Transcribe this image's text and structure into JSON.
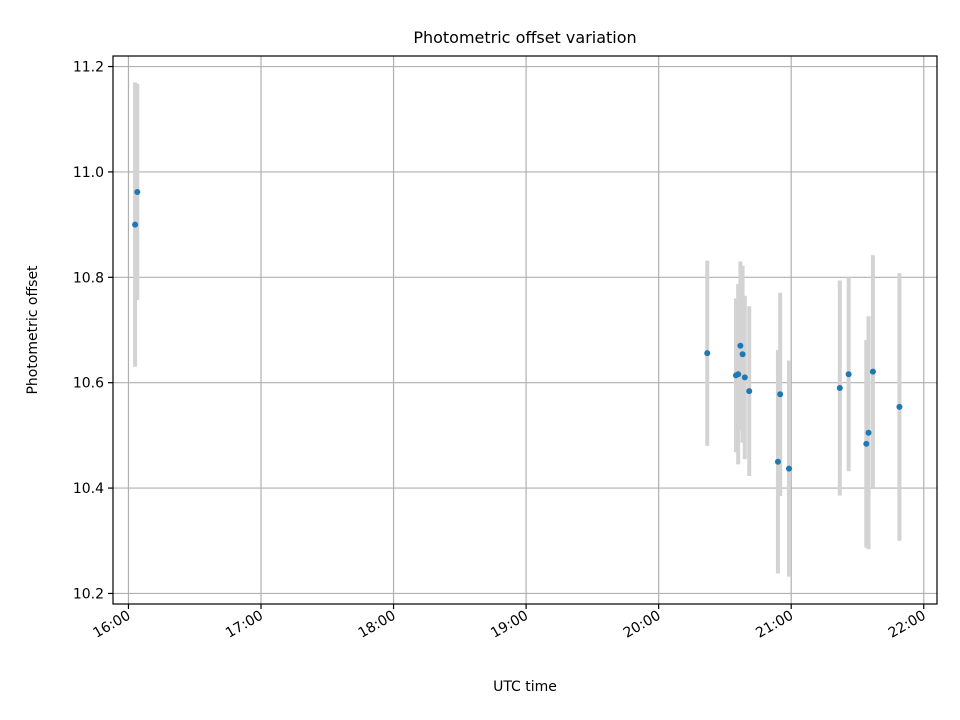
{
  "chart_data": {
    "type": "scatter",
    "title": "Photometric offset variation",
    "xlabel": "UTC time",
    "ylabel": "Photometric offset",
    "xlim": [
      "15:53",
      "22:06"
    ],
    "ylim": [
      10.18,
      11.22
    ],
    "x_ticks": [
      "16:00",
      "17:00",
      "18:00",
      "19:00",
      "20:00",
      "21:00",
      "22:00"
    ],
    "y_ticks": [
      "10.2",
      "10.4",
      "10.6",
      "10.8",
      "11.0",
      "11.2"
    ],
    "grid": true,
    "colors": {
      "point": "#1f77b4",
      "errorbar": "#d3d3d3",
      "grid": "#b0b0b0"
    },
    "points": [
      {
        "x": "16:03",
        "y": 10.9,
        "lo": 10.63,
        "hi": 11.17
      },
      {
        "x": "16:04",
        "y": 10.962,
        "lo": 10.757,
        "hi": 11.167
      },
      {
        "x": "20:22",
        "y": 10.656,
        "lo": 10.48,
        "hi": 10.832
      },
      {
        "x": "20:35",
        "y": 10.614,
        "lo": 10.468,
        "hi": 10.76
      },
      {
        "x": "20:36",
        "y": 10.616,
        "lo": 10.445,
        "hi": 10.787
      },
      {
        "x": "20:37",
        "y": 10.67,
        "lo": 10.51,
        "hi": 10.83
      },
      {
        "x": "20:38",
        "y": 10.654,
        "lo": 10.486,
        "hi": 10.822
      },
      {
        "x": "20:39",
        "y": 10.61,
        "lo": 10.455,
        "hi": 10.765
      },
      {
        "x": "20:41",
        "y": 10.584,
        "lo": 10.423,
        "hi": 10.745
      },
      {
        "x": "20:54",
        "y": 10.45,
        "lo": 10.238,
        "hi": 10.662
      },
      {
        "x": "20:55",
        "y": 10.578,
        "lo": 10.385,
        "hi": 10.771
      },
      {
        "x": "20:59",
        "y": 10.437,
        "lo": 10.232,
        "hi": 10.642
      },
      {
        "x": "21:22",
        "y": 10.59,
        "lo": 10.386,
        "hi": 10.794
      },
      {
        "x": "21:26",
        "y": 10.616,
        "lo": 10.432,
        "hi": 10.8
      },
      {
        "x": "21:34",
        "y": 10.484,
        "lo": 10.287,
        "hi": 10.681
      },
      {
        "x": "21:35",
        "y": 10.505,
        "lo": 10.284,
        "hi": 10.726
      },
      {
        "x": "21:37",
        "y": 10.621,
        "lo": 10.4,
        "hi": 10.842
      },
      {
        "x": "21:49",
        "y": 10.554,
        "lo": 10.3,
        "hi": 10.808
      }
    ]
  }
}
